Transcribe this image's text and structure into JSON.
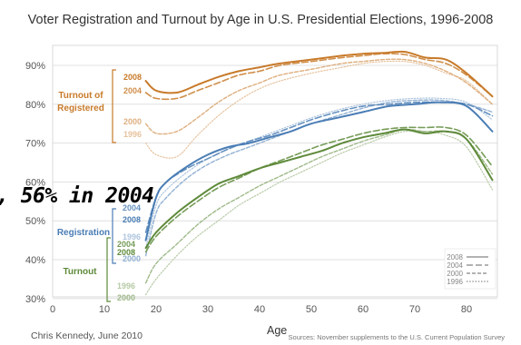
{
  "chart_data": {
    "type": "line",
    "title": "Voter Registration and Turnout by Age in U.S. Presidential Elections, 1996-2008",
    "xlabel": "Age",
    "ylabel": "",
    "xlim": [
      0,
      86
    ],
    "ylim": [
      30,
      92
    ],
    "xticks": [
      0,
      10,
      20,
      30,
      40,
      50,
      60,
      70,
      80
    ],
    "yticks": [
      30,
      40,
      50,
      60,
      70,
      80,
      90
    ],
    "ytick_format": "%",
    "grid": "horizontal",
    "legend_position": "bottom-right",
    "legend": [
      {
        "label": "2008",
        "style": "solid"
      },
      {
        "label": "2004",
        "style": "dashed"
      },
      {
        "label": "2000",
        "style": "dash-double"
      },
      {
        "label": "1996",
        "style": "dotted"
      }
    ],
    "groups": [
      {
        "name": "Turnout of Registered",
        "color": "#c87a2a",
        "years": [
          "2008",
          "2004",
          "2000",
          "1996"
        ],
        "series": [
          {
            "year": "2008",
            "style": "solid",
            "x": [
              18,
              20,
              24,
              28,
              32,
              36,
              40,
              44,
              50,
              56,
              60,
              64,
              68,
              72,
              76,
              80,
              85
            ],
            "y": [
              86,
              83.5,
              83,
              85,
              87,
              88.5,
              89.5,
              90.5,
              91.5,
              92.5,
              93,
              93.2,
              93.5,
              92,
              91.5,
              88,
              82
            ]
          },
          {
            "year": "2004",
            "style": "dashed",
            "x": [
              18,
              20,
              24,
              28,
              32,
              36,
              40,
              44,
              50,
              56,
              60,
              64,
              68,
              72,
              76,
              80,
              85
            ],
            "y": [
              83,
              81.5,
              81.5,
              83.5,
              85.5,
              87.5,
              88.5,
              90,
              91,
              92,
              92.5,
              93,
              92.8,
              91.5,
              90.5,
              87.5,
              82
            ]
          },
          {
            "year": "2000",
            "style": "dash-double",
            "x": [
              18,
              20,
              24,
              28,
              32,
              36,
              40,
              44,
              50,
              56,
              60,
              64,
              68,
              72,
              76,
              80,
              85
            ],
            "y": [
              75,
              72.5,
              73,
              76.5,
              80.5,
              83.5,
              85.5,
              87.5,
              89,
              90.5,
              91,
              91.5,
              91.5,
              90.5,
              88.5,
              85.5,
              80
            ]
          },
          {
            "year": "1996",
            "style": "dotted",
            "x": [
              18,
              20,
              24,
              28,
              32,
              36,
              40,
              44,
              50,
              56,
              60,
              64,
              68,
              72,
              76,
              80,
              85
            ],
            "y": [
              70,
              67,
              66.5,
              72,
              77,
              81,
              84,
              86,
              88,
              89.5,
              90.5,
              91,
              91,
              90,
              88,
              86,
              80
            ]
          }
        ]
      },
      {
        "name": "Registration",
        "color": "#4a7db5",
        "years": [
          "2004",
          "2008",
          "1996",
          "2000"
        ],
        "series": [
          {
            "year": "2008",
            "style": "solid",
            "x": [
              18,
              20,
              22,
              26,
              30,
              34,
              38,
              42,
              46,
              50,
              55,
              60,
              65,
              70,
              75,
              80,
              85
            ],
            "y": [
              45,
              56,
              60,
              64,
              67,
              69,
              70,
              71.5,
              73,
              75,
              76.5,
              78,
              79.5,
              80,
              80.5,
              79.5,
              73
            ]
          },
          {
            "year": "2004",
            "style": "dashed",
            "x": [
              18,
              20,
              22,
              26,
              30,
              34,
              38,
              42,
              46,
              50,
              55,
              60,
              65,
              70,
              75,
              80,
              85
            ],
            "y": [
              47,
              56,
              60,
              63.5,
              66,
              68.5,
              70.5,
              72,
              74,
              76,
              78,
              79.5,
              80,
              80.5,
              80.5,
              80,
              77
            ]
          },
          {
            "year": "2000",
            "style": "dash-double",
            "x": [
              18,
              20,
              22,
              26,
              30,
              34,
              38,
              42,
              46,
              50,
              55,
              60,
              65,
              70,
              75,
              80,
              85
            ],
            "y": [
              41,
              52,
              56,
              61,
              64.5,
              67,
              69,
              71,
              73,
              75,
              77,
              79,
              80.5,
              81,
              81,
              80,
              78
            ]
          },
          {
            "year": "1996",
            "style": "dotted",
            "x": [
              18,
              20,
              22,
              26,
              30,
              34,
              38,
              42,
              46,
              50,
              55,
              60,
              65,
              70,
              75,
              80,
              85
            ],
            "y": [
              43,
              54,
              58,
              62.5,
              66,
              68.5,
              70.5,
              72.5,
              74.5,
              76.5,
              78.5,
              80,
              81,
              81.5,
              81.5,
              80.5,
              76
            ]
          }
        ]
      },
      {
        "name": "Turnout",
        "color": "#5e8a3a",
        "years": [
          "2004",
          "2008",
          "1996",
          "2000"
        ],
        "series": [
          {
            "year": "2008",
            "style": "solid",
            "x": [
              18,
              20,
              24,
              28,
              32,
              36,
              40,
              44,
              48,
              52,
              56,
              60,
              64,
              68,
              72,
              76,
              80,
              85
            ],
            "y": [
              43,
              47,
              52,
              56,
              59.5,
              61.5,
              63.5,
              65,
              66.5,
              68,
              70,
              71.5,
              72.5,
              73.5,
              72.5,
              73,
              71,
              60.5
            ]
          },
          {
            "year": "2004",
            "style": "dashed",
            "x": [
              18,
              20,
              24,
              28,
              32,
              36,
              40,
              44,
              48,
              52,
              56,
              60,
              64,
              68,
              72,
              76,
              80,
              85
            ],
            "y": [
              42,
              46,
              51,
              55,
              58.5,
              61,
              63.5,
              65.5,
              67.5,
              69.5,
              71,
              72.5,
              73.5,
              74,
              74,
              74,
              72,
              64
            ]
          },
          {
            "year": "2000",
            "style": "dash-double",
            "x": [
              18,
              20,
              24,
              28,
              32,
              36,
              40,
              44,
              48,
              52,
              56,
              60,
              64,
              68,
              72,
              76,
              80,
              85
            ],
            "y": [
              34,
              39,
              44,
              49,
              53,
              56,
              59,
              61.5,
              64,
              66.5,
              68.5,
              70.5,
              72,
              73.5,
              73,
              73,
              71,
              62
            ]
          },
          {
            "year": "1996",
            "style": "dotted",
            "x": [
              18,
              20,
              24,
              28,
              32,
              36,
              40,
              44,
              48,
              52,
              56,
              60,
              64,
              68,
              72,
              76,
              80,
              85
            ],
            "y": [
              31,
              35,
              41,
              46,
              50,
              54,
              57,
              60,
              62.5,
              65,
              67.5,
              69.5,
              71.5,
              73,
              73,
              72,
              69,
              58
            ]
          }
        ]
      }
    ]
  },
  "page": {
    "credit": "Chris Kennedy, June 2010",
    "source": "Sources: November supplements to the U.S. Current Population Survey",
    "overlay_text": ", 56% in 2004"
  }
}
